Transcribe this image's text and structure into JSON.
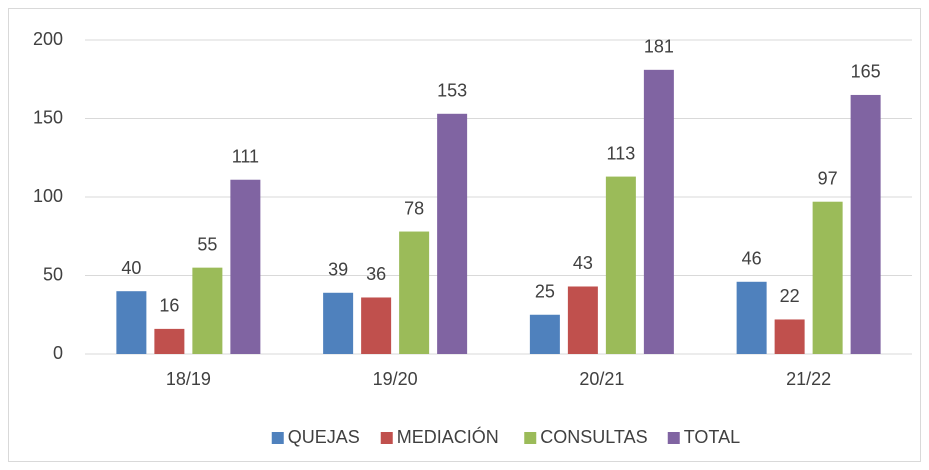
{
  "chart_data": {
    "type": "bar",
    "categories": [
      "18/19",
      "19/20",
      "20/21",
      "21/22"
    ],
    "series": [
      {
        "name": "QUEJAS",
        "color": "#4f81bd",
        "values": [
          40,
          39,
          25,
          46
        ]
      },
      {
        "name": "MEDIACIÓN",
        "color": "#c0504d",
        "values": [
          16,
          36,
          43,
          22
        ]
      },
      {
        "name": "CONSULTAS",
        "color": "#9bbb59",
        "values": [
          55,
          78,
          113,
          97
        ]
      },
      {
        "name": "TOTAL",
        "color": "#8064a2",
        "values": [
          111,
          153,
          181,
          165
        ]
      }
    ],
    "ylim": [
      0,
      200
    ],
    "yticks": [
      0,
      50,
      100,
      150,
      200
    ],
    "grid": true,
    "legend": "bottom"
  }
}
